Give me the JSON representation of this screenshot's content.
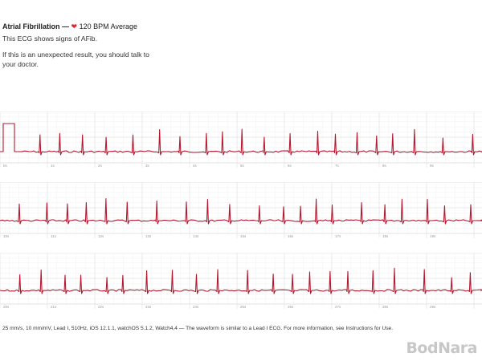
{
  "header": {
    "title": "Atrial Fibrillation —",
    "heart_icon": "heart-icon",
    "bpm": "120 BPM Average",
    "subtitle": "This ECG shows signs of AFib.",
    "advice": "If this is an unexpected result, you should talk to your doctor."
  },
  "strips": [
    {
      "ticks": [
        "0s",
        "1s",
        "2s",
        "3s",
        "4s",
        "5s",
        "6s",
        "7s",
        "8s",
        "9s"
      ]
    },
    {
      "ticks": [
        "10s",
        "11s",
        "12s",
        "13s",
        "14s",
        "15s",
        "16s",
        "17s",
        "18s",
        "19s"
      ]
    },
    {
      "ticks": [
        "20s",
        "21s",
        "22s",
        "23s",
        "24s",
        "25s",
        "26s",
        "27s",
        "28s",
        "29s"
      ]
    }
  ],
  "footer": "25 mm/s, 10 mm/mV, Lead I, 510Hz, iOS 12.1.1, watchOS 5.1.2, Watch4,4 — The waveform is similar to a Lead I ECG. For more information, see Instructions for Use.",
  "watermark": "BodNara",
  "colors": {
    "trace": "#b5172f",
    "grid_major": "#e2e2e2",
    "grid_minor": "#f2f2f2"
  }
}
